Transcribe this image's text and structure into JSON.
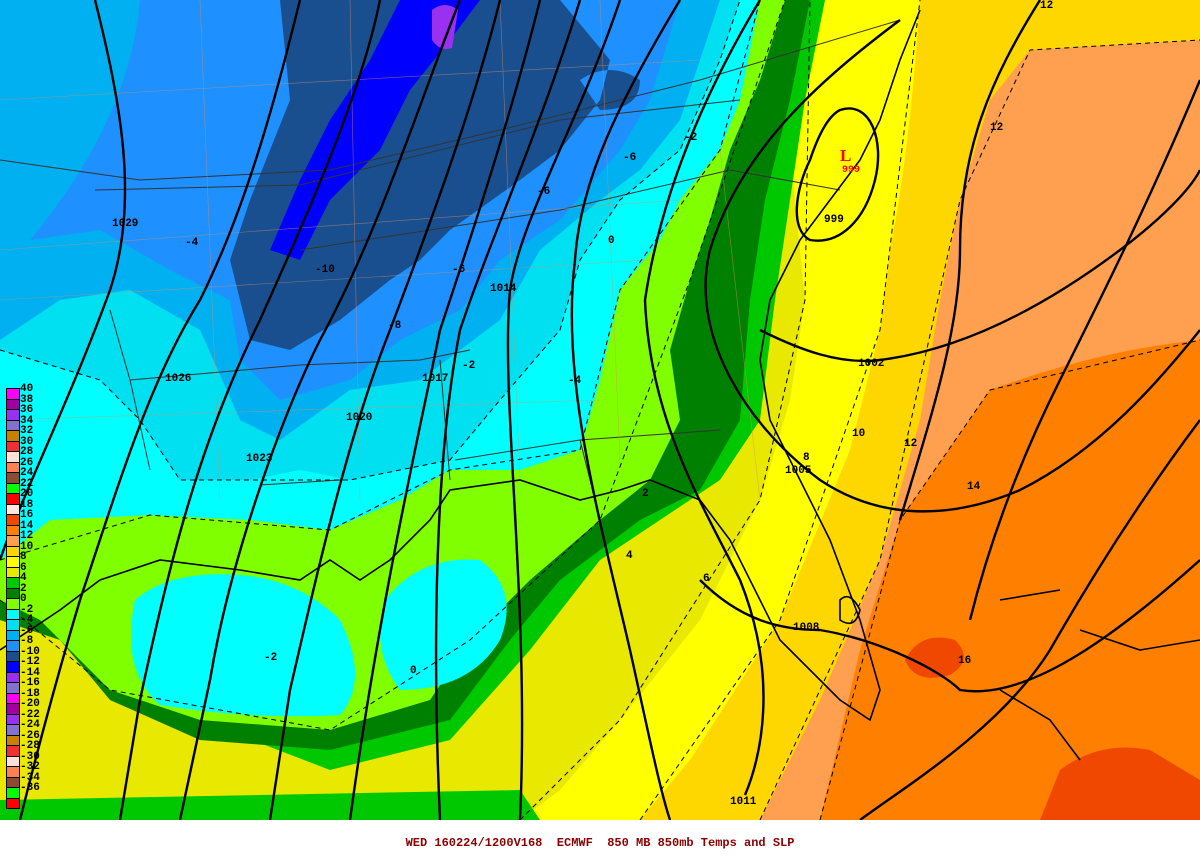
{
  "title": "WED 160224/1200V168  ECMWF  850 MB 850mb Temps and SLP",
  "legend": {
    "labels": [
      "40",
      "38",
      "36",
      "34",
      "32",
      "30",
      "28",
      "26",
      "24",
      "22",
      "20",
      "18",
      "16",
      "14",
      "12",
      "10",
      "8",
      "6",
      "4",
      "2",
      "0",
      "-2",
      "-4",
      "-6",
      "-8",
      "-10",
      "-12",
      "-14",
      "-16",
      "-18",
      "-20",
      "-22",
      "-24",
      "-26",
      "-28",
      "-30",
      "-32",
      "-34",
      "-36"
    ],
    "colors": [
      "#ff00ff",
      "#a000a0",
      "#9a30f0",
      "#8470d0",
      "#c88000",
      "#ee3030",
      "#ffe0d8",
      "#ff8050",
      "#8b4c30",
      "#00ff00",
      "#ff0000",
      "#ffe8e0",
      "#f04800",
      "#ff8000",
      "#ffa050",
      "#ffd700",
      "#ffff00",
      "#e8e800",
      "#00c800",
      "#008000",
      "#80ff00",
      "#00ffff",
      "#00e0f0",
      "#00b0f0",
      "#1e90ff",
      "#1a4f8f",
      "#0000ff",
      "#9a30f0",
      "#8470d0",
      "#ff00ff",
      "#a000a0",
      "#9a30f0",
      "#8470d0",
      "#c88000",
      "#ee3030",
      "#ffe0d8",
      "#ff8050",
      "#8b4c30",
      "#00ff00",
      "#ff0000"
    ]
  },
  "isobar_labels": [
    "1029",
    "1026",
    "1023",
    "1020",
    "1017",
    "1014",
    "1011",
    "1008",
    "1005",
    "1002",
    "999"
  ],
  "temp_labels": [
    "-4",
    "-10",
    "-8",
    "-6",
    "-6",
    "-6",
    "-4",
    "-2",
    "0",
    "-2",
    "-2",
    "0",
    "2",
    "4",
    "6",
    "8",
    "10",
    "12",
    "14",
    "16",
    "12",
    "12"
  ],
  "low_center": {
    "symbol": "L",
    "value": "999"
  }
}
